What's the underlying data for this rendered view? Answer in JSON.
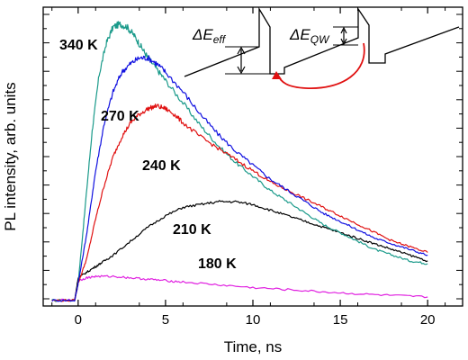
{
  "chart_data": {
    "type": "line",
    "title": "",
    "xlabel": "Time, ns",
    "ylabel": "PL intensity, arb. units",
    "xlim": [
      -2,
      22
    ],
    "ylim": [
      0,
      1.06
    ],
    "xticks": [
      "0",
      "5",
      "10",
      "15",
      "20"
    ],
    "xtick_values": [
      0,
      5,
      10,
      15,
      20
    ],
    "y_tick_labels_shown": false,
    "grid": false,
    "series": [
      {
        "name": "340 K",
        "color": "#1a9a8a",
        "x": [
          -1.5,
          -0.2,
          0,
          0.4,
          0.8,
          1.2,
          1.6,
          2.0,
          2.4,
          2.8,
          3.2,
          3.6,
          4.0,
          4.5,
          5,
          6,
          7,
          8,
          9,
          10,
          11,
          12,
          13,
          14,
          15,
          16,
          17,
          18,
          19,
          20
        ],
        "y": [
          0.02,
          0.02,
          0.08,
          0.35,
          0.62,
          0.82,
          0.93,
          0.99,
          1.0,
          0.99,
          0.96,
          0.92,
          0.88,
          0.84,
          0.8,
          0.72,
          0.64,
          0.57,
          0.51,
          0.46,
          0.41,
          0.37,
          0.33,
          0.29,
          0.26,
          0.23,
          0.2,
          0.18,
          0.16,
          0.15
        ]
      },
      {
        "name": "270 K",
        "color": "#1010e0",
        "x": [
          -1.5,
          -0.2,
          0,
          0.5,
          1.0,
          1.5,
          2.0,
          2.5,
          3.0,
          3.5,
          4.0,
          4.5,
          5,
          6,
          7,
          8,
          9,
          10,
          11,
          12,
          13,
          14,
          15,
          16,
          17,
          18,
          19,
          20
        ],
        "y": [
          0.02,
          0.02,
          0.08,
          0.26,
          0.48,
          0.65,
          0.76,
          0.83,
          0.86,
          0.88,
          0.88,
          0.86,
          0.83,
          0.76,
          0.68,
          0.61,
          0.55,
          0.5,
          0.45,
          0.41,
          0.37,
          0.33,
          0.3,
          0.27,
          0.24,
          0.22,
          0.2,
          0.18
        ]
      },
      {
        "name": "240 K",
        "color": "#e01010",
        "x": [
          -1.5,
          -0.2,
          0,
          0.5,
          1.0,
          1.5,
          2.0,
          2.5,
          3.0,
          3.5,
          4.0,
          4.5,
          5,
          5.5,
          6,
          7,
          8,
          9,
          10,
          11,
          12,
          13,
          14,
          15,
          16,
          17,
          18,
          19,
          20
        ],
        "y": [
          0.02,
          0.02,
          0.08,
          0.17,
          0.31,
          0.43,
          0.53,
          0.6,
          0.65,
          0.68,
          0.7,
          0.71,
          0.7,
          0.68,
          0.65,
          0.6,
          0.56,
          0.52,
          0.48,
          0.44,
          0.41,
          0.38,
          0.35,
          0.32,
          0.29,
          0.26,
          0.23,
          0.21,
          0.19
        ]
      },
      {
        "name": "210 K",
        "color": "#000000",
        "x": [
          -1.5,
          -0.2,
          0,
          0.5,
          1,
          1.5,
          2,
          3,
          4,
          5,
          6,
          7,
          8,
          9,
          10,
          11,
          12,
          13,
          14,
          15,
          16,
          17,
          18,
          19,
          20
        ],
        "y": [
          0.02,
          0.02,
          0.1,
          0.12,
          0.14,
          0.16,
          0.18,
          0.23,
          0.28,
          0.32,
          0.35,
          0.36,
          0.37,
          0.37,
          0.36,
          0.34,
          0.32,
          0.3,
          0.28,
          0.26,
          0.24,
          0.22,
          0.2,
          0.18,
          0.16
        ]
      },
      {
        "name": "180 K",
        "color": "#e020e0",
        "x": [
          -1.5,
          -0.2,
          0,
          0.5,
          1,
          2,
          3,
          4,
          5,
          6,
          8,
          10,
          12,
          14,
          16,
          18,
          20
        ],
        "y": [
          0.02,
          0.02,
          0.09,
          0.1,
          0.105,
          0.105,
          0.1,
          0.095,
          0.09,
          0.085,
          0.075,
          0.065,
          0.058,
          0.05,
          0.043,
          0.037,
          0.032
        ]
      }
    ],
    "inset": {
      "labels": [
        "ΔE",
        "eff",
        "ΔE",
        "QW"
      ]
    }
  }
}
